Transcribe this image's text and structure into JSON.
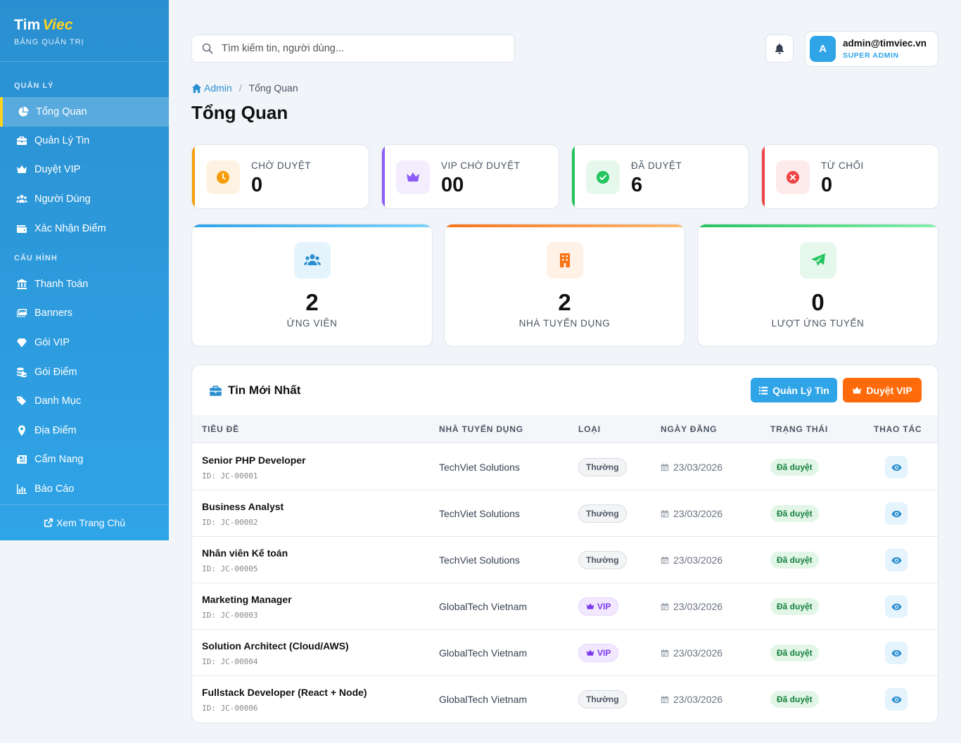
{
  "brand": {
    "name_part1": "Tim",
    "name_part2": "Viec",
    "subtitle": "BẢNG QUẢN TRỊ"
  },
  "sidebar": {
    "section1": "QUẢN LÝ",
    "section2": "CẤU HÌNH",
    "items": [
      {
        "label": "Tổng Quan",
        "icon": "chart-pie-icon"
      },
      {
        "label": "Quản Lý Tin",
        "icon": "briefcase-icon"
      },
      {
        "label": "Duyệt VIP",
        "icon": "crown-icon"
      },
      {
        "label": "Người Dùng",
        "icon": "users-icon"
      },
      {
        "label": "Xác Nhận Điểm",
        "icon": "wallet-icon"
      },
      {
        "label": "Thanh Toán",
        "icon": "bank-icon"
      },
      {
        "label": "Banners",
        "icon": "images-icon"
      },
      {
        "label": "Gói VIP",
        "icon": "gem-icon"
      },
      {
        "label": "Gói Điểm",
        "icon": "coins-icon"
      },
      {
        "label": "Danh Mục",
        "icon": "tags-icon"
      },
      {
        "label": "Địa Điểm",
        "icon": "map-pin-icon"
      },
      {
        "label": "Cẩm Nang",
        "icon": "newspaper-icon"
      },
      {
        "label": "Báo Cáo",
        "icon": "chart-line-icon"
      }
    ],
    "footer_link": "Xem Trang Chủ"
  },
  "header": {
    "search_placeholder": "Tìm kiếm tin, người dùng...",
    "user_initial": "A",
    "user_email": "admin@timviec.vn",
    "user_role": "SUPER ADMIN"
  },
  "breadcrumb": {
    "home": "Admin",
    "current": "Tổng Quan"
  },
  "page_title": "Tổng Quan",
  "stats": [
    {
      "label": "CHỜ DUYỆT",
      "value": "0",
      "color": "#f59e0b"
    },
    {
      "label": "VIP CHỜ DUYỆT",
      "value": "00",
      "color": "#8b5cf6"
    },
    {
      "label": "ĐÃ DUYỆT",
      "value": "6",
      "color": "#22c55e"
    },
    {
      "label": "TỪ CHỐI",
      "value": "0",
      "color": "#ef4444"
    }
  ],
  "summary": [
    {
      "label": "ỨNG VIÊN",
      "value": "2"
    },
    {
      "label": "NHÀ TUYỂN DỤNG",
      "value": "2"
    },
    {
      "label": "LƯỢT ỨNG TUYỂN",
      "value": "0"
    }
  ],
  "jobs_panel": {
    "title": "Tin Mới Nhất",
    "btn_manage": "Quản Lý Tin",
    "btn_vip": "Duyệt VIP",
    "columns": [
      "TIÊU ĐỀ",
      "NHÀ TUYỂN DỤNG",
      "LOẠI",
      "NGÀY ĐĂNG",
      "TRẠNG THÁI",
      "THAO TÁC"
    ],
    "rows": [
      {
        "title": "Senior PHP Developer",
        "id": "ID: JC-00001",
        "company": "TechViet Solutions",
        "type": "Thường",
        "date": "23/03/2026",
        "status": "Đã duyệt"
      },
      {
        "title": "Business Analyst",
        "id": "ID: JC-00002",
        "company": "TechViet Solutions",
        "type": "Thường",
        "date": "23/03/2026",
        "status": "Đã duyệt"
      },
      {
        "title": "Nhân viên Kế toán",
        "id": "ID: JC-00005",
        "company": "TechViet Solutions",
        "type": "Thường",
        "date": "23/03/2026",
        "status": "Đã duyệt"
      },
      {
        "title": "Marketing Manager",
        "id": "ID: JC-00003",
        "company": "GlobalTech Vietnam",
        "type": "VIP",
        "date": "23/03/2026",
        "status": "Đã duyệt"
      },
      {
        "title": "Solution Architect (Cloud/AWS)",
        "id": "ID: JC-00004",
        "company": "GlobalTech Vietnam",
        "type": "VIP",
        "date": "23/03/2026",
        "status": "Đã duyệt"
      },
      {
        "title": "Fullstack Developer (React + Node)",
        "id": "ID: JC-00006",
        "company": "GlobalTech Vietnam",
        "type": "Thường",
        "date": "23/03/2026",
        "status": "Đã duyệt"
      }
    ]
  }
}
